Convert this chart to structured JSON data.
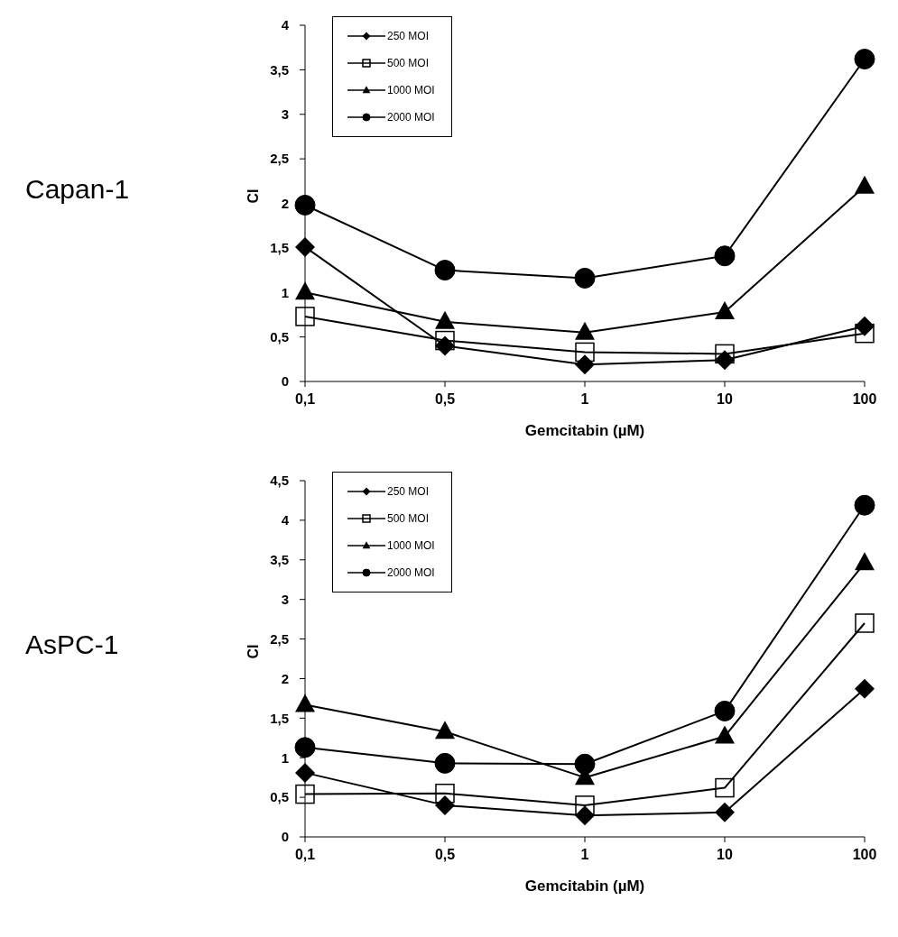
{
  "chart_data": [
    {
      "type": "line",
      "title": "Capan-1",
      "xlabel": "Gemcitabin (µM)",
      "ylabel": "CI",
      "categories": [
        "0,1",
        "0,5",
        "1",
        "10",
        "100"
      ],
      "ylim": [
        0,
        4
      ],
      "yticks": [
        0,
        {
          "value": 0.5,
          "label": "0,5"
        },
        1,
        {
          "value": 1.5,
          "label": "1,5"
        },
        2,
        {
          "value": 2.5,
          "label": "2,5"
        },
        3,
        {
          "value": 3.5,
          "label": "3,5"
        },
        4
      ],
      "grid": false,
      "legend": "top left",
      "series": [
        {
          "name": "250 MOI",
          "color": "#000000",
          "marker": "diamond",
          "values": [
            1.51,
            0.4,
            0.19,
            0.24,
            0.62
          ]
        },
        {
          "name": "500 MOI",
          "color": "#000000",
          "marker": "square",
          "values": [
            0.73,
            0.46,
            0.33,
            0.31,
            0.54
          ]
        },
        {
          "name": "1000 MOI",
          "color": "#000000",
          "marker": "triangle",
          "values": [
            1.0,
            0.67,
            0.55,
            0.78,
            2.19
          ]
        },
        {
          "name": "2000 MOI",
          "color": "#000000",
          "marker": "circle",
          "values": [
            1.98,
            1.25,
            1.16,
            1.41,
            3.62
          ]
        }
      ]
    },
    {
      "type": "line",
      "title": "AsPC-1",
      "xlabel": "Gemcitabin (µM)",
      "ylabel": "CI",
      "categories": [
        "0,1",
        "0,5",
        "1",
        "10",
        "100"
      ],
      "ylim": [
        0,
        4.5
      ],
      "yticks": [
        0,
        {
          "value": 0.5,
          "label": "0,5"
        },
        1,
        {
          "value": 1.5,
          "label": "1,5"
        },
        2,
        {
          "value": 2.5,
          "label": "2,5"
        },
        3,
        {
          "value": 3.5,
          "label": "3,5"
        },
        4,
        {
          "value": 4.5,
          "label": "4,5"
        }
      ],
      "grid": false,
      "legend": "top left",
      "series": [
        {
          "name": "250 MOI",
          "color": "#000000",
          "marker": "diamond",
          "values": [
            0.81,
            0.4,
            0.27,
            0.31,
            1.87
          ]
        },
        {
          "name": "500 MOI",
          "color": "#000000",
          "marker": "square",
          "values": [
            0.54,
            0.55,
            0.4,
            0.62,
            2.7
          ]
        },
        {
          "name": "1000 MOI",
          "color": "#000000",
          "marker": "triangle",
          "values": [
            1.67,
            1.33,
            0.75,
            1.27,
            3.46
          ]
        },
        {
          "name": "2000 MOI",
          "color": "#000000",
          "marker": "circle",
          "values": [
            1.13,
            0.93,
            0.92,
            1.59,
            4.19
          ]
        }
      ]
    }
  ]
}
